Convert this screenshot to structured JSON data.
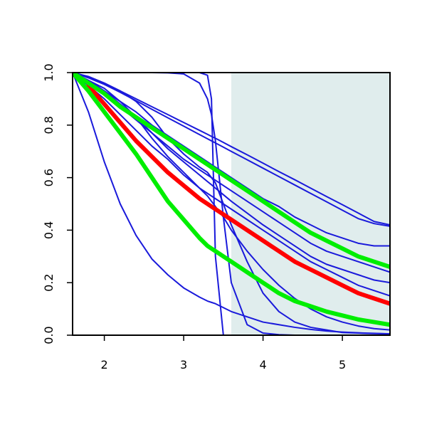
{
  "chart_data": {
    "type": "line",
    "title": "",
    "xlabel": "",
    "ylabel": "",
    "xlim": [
      1.6,
      5.6
    ],
    "ylim": [
      0,
      1
    ],
    "grid": false,
    "legend": "none",
    "x_ticks": [
      2,
      3,
      4,
      5
    ],
    "x_tick_labels": [
      "2",
      "3",
      "4",
      "5"
    ],
    "y_ticks": [
      0,
      0.2,
      0.4,
      0.6,
      0.8,
      1.0
    ],
    "y_tick_labels": [
      "0.0",
      "0.2",
      "0.4",
      "0.6",
      "0.8",
      "1.0"
    ],
    "shaded_region": {
      "x_start": 3.6,
      "x_end": 5.6,
      "color": "#e0eded"
    },
    "colors": {
      "blue": "#1a1adb",
      "red": "#ff0000",
      "green": "#00ee00",
      "axis": "#000000"
    },
    "x": [
      1.6,
      1.8,
      2.0,
      2.2,
      2.4,
      2.6,
      2.8,
      3.0,
      3.2,
      3.3,
      3.35,
      3.4,
      3.5,
      3.6,
      3.8,
      4.0,
      4.2,
      4.4,
      4.6,
      4.8,
      5.0,
      5.2,
      5.4,
      5.6
    ],
    "series": [
      {
        "color": "blue",
        "width": 2,
        "values": [
          1.0,
          0.85,
          0.66,
          0.5,
          0.38,
          0.29,
          0.23,
          0.18,
          0.145,
          0.13,
          0.125,
          0.12,
          0.105,
          0.09,
          0.07,
          0.05,
          0.04,
          0.03,
          0.022,
          0.016,
          0.012,
          0.009,
          0.007,
          0.005
        ]
      },
      {
        "color": "blue",
        "width": 2,
        "values": [
          1.0,
          1.0,
          1.0,
          1.0,
          1.0,
          1.0,
          1.0,
          1.0,
          1.0,
          0.99,
          0.9,
          0.3,
          0.0,
          0.0,
          0.0,
          0.0,
          0.0,
          0.0,
          0.0,
          0.0,
          0.0,
          0.0,
          0.0,
          0.0
        ]
      },
      {
        "color": "blue",
        "width": 2,
        "values": [
          1.0,
          1.0,
          1.0,
          1.0,
          1.0,
          1.0,
          0.999,
          0.995,
          0.96,
          0.9,
          0.84,
          0.74,
          0.45,
          0.2,
          0.04,
          0.008,
          0.002,
          0.0,
          0.0,
          0.0,
          0.0,
          0.0,
          0.0,
          0.0
        ]
      },
      {
        "color": "blue",
        "width": 2,
        "values": [
          1.0,
          0.985,
          0.96,
          0.93,
          0.9,
          0.87,
          0.84,
          0.81,
          0.78,
          0.765,
          0.757,
          0.75,
          0.734,
          0.718,
          0.687,
          0.655,
          0.623,
          0.592,
          0.56,
          0.528,
          0.497,
          0.465,
          0.433,
          0.42
        ]
      },
      {
        "color": "blue",
        "width": 2,
        "values": [
          1.0,
          0.98,
          0.955,
          0.925,
          0.893,
          0.86,
          0.828,
          0.796,
          0.764,
          0.748,
          0.74,
          0.732,
          0.716,
          0.7,
          0.668,
          0.636,
          0.604,
          0.572,
          0.54,
          0.508,
          0.476,
          0.444,
          0.425,
          0.415
        ]
      },
      {
        "color": "blue",
        "width": 2,
        "values": [
          1.0,
          0.97,
          0.93,
          0.89,
          0.85,
          0.8,
          0.76,
          0.72,
          0.68,
          0.66,
          0.65,
          0.64,
          0.62,
          0.6,
          0.56,
          0.52,
          0.49,
          0.45,
          0.42,
          0.39,
          0.37,
          0.35,
          0.34,
          0.34
        ]
      },
      {
        "color": "blue",
        "width": 2,
        "values": [
          1.0,
          0.96,
          0.92,
          0.87,
          0.82,
          0.77,
          0.72,
          0.67,
          0.63,
          0.61,
          0.6,
          0.59,
          0.57,
          0.55,
          0.51,
          0.47,
          0.43,
          0.39,
          0.35,
          0.32,
          0.3,
          0.28,
          0.26,
          0.24
        ]
      },
      {
        "color": "blue",
        "width": 2,
        "values": [
          1.0,
          0.97,
          0.93,
          0.88,
          0.83,
          0.77,
          0.71,
          0.66,
          0.61,
          0.585,
          0.573,
          0.56,
          0.535,
          0.51,
          0.465,
          0.42,
          0.38,
          0.34,
          0.3,
          0.27,
          0.25,
          0.23,
          0.21,
          0.2
        ]
      },
      {
        "color": "blue",
        "width": 2,
        "values": [
          1.0,
          0.95,
          0.9,
          0.84,
          0.78,
          0.72,
          0.67,
          0.61,
          0.56,
          0.54,
          0.53,
          0.52,
          0.5,
          0.48,
          0.44,
          0.4,
          0.36,
          0.32,
          0.28,
          0.25,
          0.22,
          0.19,
          0.17,
          0.15
        ]
      },
      {
        "color": "blue",
        "width": 2,
        "values": [
          1.0,
          0.97,
          0.94,
          0.89,
          0.83,
          0.75,
          0.68,
          0.62,
          0.56,
          0.53,
          0.51,
          0.49,
          0.45,
          0.4,
          0.32,
          0.25,
          0.19,
          0.14,
          0.1,
          0.07,
          0.05,
          0.035,
          0.025,
          0.02
        ]
      },
      {
        "color": "blue",
        "width": 2,
        "values": [
          1.0,
          0.985,
          0.96,
          0.93,
          0.89,
          0.83,
          0.75,
          0.69,
          0.64,
          0.62,
          0.6,
          0.58,
          0.5,
          0.42,
          0.28,
          0.16,
          0.09,
          0.05,
          0.03,
          0.02,
          0.01,
          0.008,
          0.006,
          0.005
        ]
      },
      {
        "color": "red",
        "width": 6,
        "values": [
          null,
          0.95,
          0.88,
          0.81,
          0.74,
          0.68,
          0.62,
          0.57,
          0.52,
          0.5,
          0.49,
          0.48,
          0.46,
          0.44,
          0.4,
          0.36,
          0.32,
          0.28,
          0.25,
          0.22,
          0.19,
          0.16,
          0.14,
          0.12
        ]
      },
      {
        "color": "green",
        "width": 6,
        "values": [
          1.0,
          0.96,
          0.92,
          0.87,
          0.83,
          0.79,
          0.75,
          0.71,
          0.67,
          0.65,
          0.64,
          0.63,
          0.61,
          0.59,
          0.55,
          0.51,
          0.47,
          0.43,
          0.39,
          0.36,
          0.33,
          0.3,
          0.28,
          0.26
        ]
      },
      {
        "color": "green",
        "width": 6,
        "values": [
          1.0,
          0.93,
          0.85,
          0.77,
          0.69,
          0.6,
          0.51,
          0.44,
          0.37,
          0.34,
          0.33,
          0.32,
          0.3,
          0.28,
          0.24,
          0.2,
          0.16,
          0.13,
          0.11,
          0.09,
          0.075,
          0.06,
          0.05,
          0.04
        ]
      }
    ]
  }
}
